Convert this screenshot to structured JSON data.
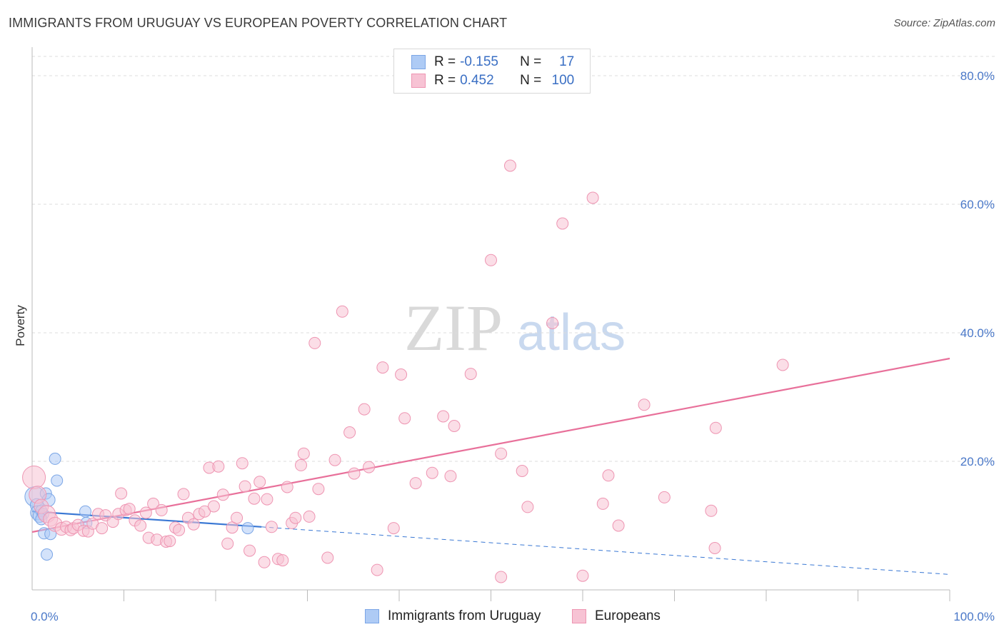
{
  "header": {
    "title": "IMMIGRANTS FROM URUGUAY VS EUROPEAN POVERTY CORRELATION CHART",
    "source": "Source: ZipAtlas.com"
  },
  "watermark": {
    "zip": "ZIP",
    "atlas": "atlas"
  },
  "legend": {
    "rows": [
      {
        "r_label": "R =",
        "r_value": "-0.155",
        "n_label": "N =",
        "n_value": "17",
        "color": "#aecbf5",
        "border": "#7ba6e6"
      },
      {
        "r_label": "R =",
        "r_value": "0.452",
        "n_label": "N =",
        "n_value": "100",
        "color": "#f7c3d4",
        "border": "#ee95b2"
      }
    ]
  },
  "bottom_legend": {
    "uruguay": {
      "label": "Immigrants from Uruguay",
      "color": "#aecbf5",
      "border": "#7ba6e6"
    },
    "europeans": {
      "label": "Europeans",
      "color": "#f7c3d4",
      "border": "#ee95b2"
    }
  },
  "chart_data": {
    "type": "scatter",
    "title": "IMMIGRANTS FROM URUGUAY VS EUROPEAN POVERTY CORRELATION CHART",
    "xlabel": "",
    "ylabel": "Poverty",
    "xlim": [
      0,
      100
    ],
    "ylim": [
      0,
      84
    ],
    "x_tick_labels": [
      {
        "value": 0,
        "label": "0.0%"
      },
      {
        "value": 100,
        "label": "100.0%"
      }
    ],
    "y_tick_labels": [
      {
        "value": 20,
        "label": "20.0%"
      },
      {
        "value": 40,
        "label": "40.0%"
      },
      {
        "value": 60,
        "label": "60.0%"
      },
      {
        "value": 80,
        "label": "80.0%"
      }
    ],
    "x_minor_ticks": [
      10,
      20,
      30,
      40,
      50,
      60,
      70,
      80,
      90
    ],
    "grid": true,
    "series": [
      {
        "name": "Immigrants from Uruguay",
        "color": "#aecbf5",
        "edge": "#7ba6e6",
        "r": -0.155,
        "n": 17,
        "points": [
          [
            0.3,
            14.5,
            14
          ],
          [
            0.5,
            13.2,
            9
          ],
          [
            0.6,
            12.0,
            10
          ],
          [
            0.8,
            11.5,
            9
          ],
          [
            1.0,
            12.3,
            8
          ],
          [
            1.2,
            11.8,
            8
          ],
          [
            1.3,
            8.8,
            8
          ],
          [
            1.5,
            15.0,
            8
          ],
          [
            1.6,
            5.5,
            8
          ],
          [
            1.8,
            14.0,
            9
          ],
          [
            2.0,
            8.7,
            8
          ],
          [
            2.5,
            20.4,
            8
          ],
          [
            2.7,
            17.0,
            8
          ],
          [
            5.8,
            12.2,
            8
          ],
          [
            5.9,
            10.4,
            8
          ],
          [
            23.5,
            9.6,
            8
          ],
          [
            1.0,
            11.0,
            8
          ]
        ],
        "trend": {
          "x0": 0,
          "y0": 12.2,
          "x1": 25,
          "y1": 9.8
        },
        "trend_extension": {
          "x0": 25,
          "y0": 9.8,
          "x1": 100,
          "y1": 2.4
        }
      },
      {
        "name": "Europeans",
        "color": "#f7c3d4",
        "edge": "#ee95b2",
        "r": 0.452,
        "n": 100,
        "points": [
          [
            0.2,
            17.5,
            16
          ],
          [
            0.6,
            14.8,
            12
          ],
          [
            1.0,
            13.0,
            10
          ],
          [
            1.6,
            11.8,
            12
          ],
          [
            2.0,
            11.0,
            10
          ],
          [
            2.5,
            10.2,
            10
          ],
          [
            3.2,
            9.5,
            9
          ],
          [
            3.7,
            9.8,
            8
          ],
          [
            4.2,
            9.3,
            8
          ],
          [
            4.5,
            9.6,
            8
          ],
          [
            5.0,
            10.1,
            8
          ],
          [
            5.6,
            9.2,
            8
          ],
          [
            6.1,
            9.1,
            8
          ],
          [
            6.6,
            10.3,
            8
          ],
          [
            7.2,
            11.8,
            8
          ],
          [
            7.6,
            9.6,
            8
          ],
          [
            8.0,
            11.6,
            8
          ],
          [
            8.8,
            10.6,
            8
          ],
          [
            9.4,
            11.8,
            8
          ],
          [
            9.7,
            15.0,
            8
          ],
          [
            10.2,
            12.4,
            8
          ],
          [
            10.6,
            12.6,
            8
          ],
          [
            11.2,
            10.8,
            8
          ],
          [
            11.8,
            10.0,
            8
          ],
          [
            12.4,
            12.0,
            8
          ],
          [
            12.7,
            8.1,
            8
          ],
          [
            13.2,
            13.4,
            8
          ],
          [
            13.6,
            7.8,
            8
          ],
          [
            14.1,
            12.4,
            8
          ],
          [
            14.6,
            7.5,
            8
          ],
          [
            15.0,
            7.6,
            8
          ],
          [
            15.6,
            9.7,
            8
          ],
          [
            16.0,
            9.3,
            8
          ],
          [
            16.5,
            14.9,
            8
          ],
          [
            17.0,
            11.2,
            8
          ],
          [
            17.6,
            10.2,
            8
          ],
          [
            18.2,
            11.8,
            8
          ],
          [
            18.8,
            12.2,
            8
          ],
          [
            19.3,
            19.0,
            8
          ],
          [
            19.8,
            13.0,
            8
          ],
          [
            20.3,
            19.2,
            8
          ],
          [
            20.8,
            14.8,
            8
          ],
          [
            21.3,
            7.2,
            8
          ],
          [
            21.8,
            9.7,
            8
          ],
          [
            22.3,
            11.2,
            8
          ],
          [
            22.9,
            19.7,
            8
          ],
          [
            23.2,
            16.1,
            8
          ],
          [
            23.7,
            6.1,
            8
          ],
          [
            24.2,
            14.2,
            8
          ],
          [
            24.8,
            16.8,
            8
          ],
          [
            25.3,
            4.3,
            8
          ],
          [
            25.6,
            14.1,
            8
          ],
          [
            26.1,
            9.8,
            8
          ],
          [
            26.8,
            4.8,
            8
          ],
          [
            27.3,
            4.6,
            8
          ],
          [
            27.8,
            16.0,
            8
          ],
          [
            28.3,
            10.4,
            8
          ],
          [
            28.7,
            11.2,
            8
          ],
          [
            29.3,
            19.4,
            8
          ],
          [
            29.6,
            21.2,
            8
          ],
          [
            30.2,
            11.4,
            8
          ],
          [
            30.8,
            38.4,
            8
          ],
          [
            31.2,
            15.7,
            8
          ],
          [
            32.2,
            5.0,
            8
          ],
          [
            33.0,
            20.2,
            8
          ],
          [
            33.8,
            43.3,
            8
          ],
          [
            34.6,
            24.5,
            8
          ],
          [
            35.1,
            18.1,
            8
          ],
          [
            36.2,
            28.1,
            8
          ],
          [
            36.7,
            19.1,
            8
          ],
          [
            37.6,
            3.1,
            8
          ],
          [
            38.2,
            34.6,
            8
          ],
          [
            39.4,
            9.6,
            8
          ],
          [
            40.2,
            33.5,
            8
          ],
          [
            40.6,
            26.7,
            8
          ],
          [
            41.8,
            16.6,
            8
          ],
          [
            43.6,
            18.2,
            8
          ],
          [
            44.8,
            27.0,
            8
          ],
          [
            45.6,
            17.7,
            8
          ],
          [
            46.0,
            25.5,
            8
          ],
          [
            47.8,
            33.6,
            8
          ],
          [
            50.0,
            51.3,
            8
          ],
          [
            51.1,
            21.2,
            8
          ],
          [
            51.1,
            2.0,
            8
          ],
          [
            52.1,
            66.0,
            8
          ],
          [
            53.4,
            18.5,
            8
          ],
          [
            54.0,
            12.9,
            8
          ],
          [
            56.7,
            41.5,
            8
          ],
          [
            57.8,
            57.0,
            8
          ],
          [
            60.0,
            2.2,
            8
          ],
          [
            61.1,
            61.0,
            8
          ],
          [
            62.2,
            13.4,
            8
          ],
          [
            62.8,
            17.8,
            8
          ],
          [
            63.9,
            10.0,
            8
          ],
          [
            66.7,
            28.8,
            8
          ],
          [
            68.9,
            14.4,
            8
          ],
          [
            74.0,
            12.3,
            8
          ],
          [
            74.5,
            25.2,
            8
          ],
          [
            74.4,
            6.5,
            8
          ],
          [
            81.8,
            35.0,
            8
          ]
        ],
        "trend": {
          "x0": 0,
          "y0": 9.0,
          "x1": 100,
          "y1": 36.0
        }
      }
    ]
  }
}
